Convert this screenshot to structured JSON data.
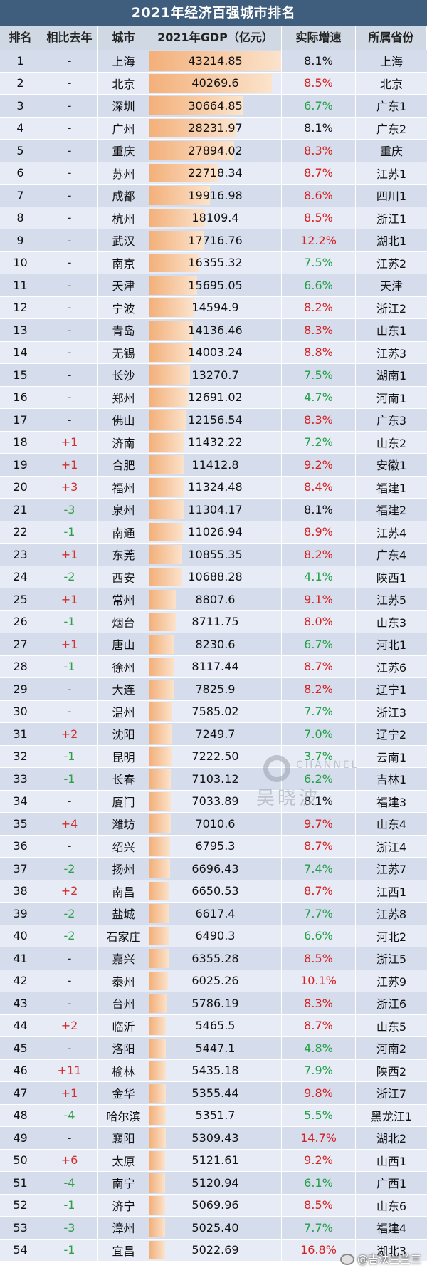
{
  "title": "2021年经济百强城市排名",
  "headers": {
    "rank": "排名",
    "change": "相比去年",
    "city": "城市",
    "gdp": "2021年GDP（亿元）",
    "growth": "实际增速",
    "province": "所属省份"
  },
  "colors": {
    "title_bg": "#3f5d7d",
    "header_bg": "#cfd8e3",
    "row_odd": "#d5dcec",
    "row_even": "#e7ebf5",
    "positive_change": "#d32f2f",
    "negative_change": "#2e9e47"
  },
  "gdp_scale_max": 43214.85,
  "rows": [
    {
      "rank": "1",
      "change": "-",
      "city": "上海",
      "gdp": "43214.85",
      "growth": "8.1%",
      "province": "上海"
    },
    {
      "rank": "2",
      "change": "-",
      "city": "北京",
      "gdp": "40269.6",
      "growth": "8.5%",
      "province": "北京"
    },
    {
      "rank": "3",
      "change": "-",
      "city": "深圳",
      "gdp": "30664.85",
      "growth": "6.7%",
      "province": "广东1"
    },
    {
      "rank": "4",
      "change": "-",
      "city": "广州",
      "gdp": "28231.97",
      "growth": "8.1%",
      "province": "广东2"
    },
    {
      "rank": "5",
      "change": "-",
      "city": "重庆",
      "gdp": "27894.02",
      "growth": "8.3%",
      "province": "重庆"
    },
    {
      "rank": "6",
      "change": "-",
      "city": "苏州",
      "gdp": "22718.34",
      "growth": "8.7%",
      "province": "江苏1"
    },
    {
      "rank": "7",
      "change": "-",
      "city": "成都",
      "gdp": "19916.98",
      "growth": "8.6%",
      "province": "四川1"
    },
    {
      "rank": "8",
      "change": "-",
      "city": "杭州",
      "gdp": "18109.4",
      "growth": "8.5%",
      "province": "浙江1"
    },
    {
      "rank": "9",
      "change": "-",
      "city": "武汉",
      "gdp": "17716.76",
      "growth": "12.2%",
      "province": "湖北1"
    },
    {
      "rank": "10",
      "change": "-",
      "city": "南京",
      "gdp": "16355.32",
      "growth": "7.5%",
      "province": "江苏2"
    },
    {
      "rank": "11",
      "change": "-",
      "city": "天津",
      "gdp": "15695.05",
      "growth": "6.6%",
      "province": "天津"
    },
    {
      "rank": "12",
      "change": "-",
      "city": "宁波",
      "gdp": "14594.9",
      "growth": "8.2%",
      "province": "浙江2"
    },
    {
      "rank": "13",
      "change": "-",
      "city": "青岛",
      "gdp": "14136.46",
      "growth": "8.3%",
      "province": "山东1"
    },
    {
      "rank": "14",
      "change": "-",
      "city": "无锡",
      "gdp": "14003.24",
      "growth": "8.8%",
      "province": "江苏3"
    },
    {
      "rank": "15",
      "change": "-",
      "city": "长沙",
      "gdp": "13270.7",
      "growth": "7.5%",
      "province": "湖南1"
    },
    {
      "rank": "16",
      "change": "-",
      "city": "郑州",
      "gdp": "12691.02",
      "growth": "4.7%",
      "province": "河南1"
    },
    {
      "rank": "17",
      "change": "-",
      "city": "佛山",
      "gdp": "12156.54",
      "growth": "8.3%",
      "province": "广东3"
    },
    {
      "rank": "18",
      "change": "+1",
      "city": "济南",
      "gdp": "11432.22",
      "growth": "7.2%",
      "province": "山东2"
    },
    {
      "rank": "19",
      "change": "+1",
      "city": "合肥",
      "gdp": "11412.8",
      "growth": "9.2%",
      "province": "安徽1"
    },
    {
      "rank": "20",
      "change": "+3",
      "city": "福州",
      "gdp": "11324.48",
      "growth": "8.4%",
      "province": "福建1"
    },
    {
      "rank": "21",
      "change": "-3",
      "city": "泉州",
      "gdp": "11304.17",
      "growth": "8.1%",
      "province": "福建2"
    },
    {
      "rank": "22",
      "change": "-1",
      "city": "南通",
      "gdp": "11026.94",
      "growth": "8.9%",
      "province": "江苏4"
    },
    {
      "rank": "23",
      "change": "+1",
      "city": "东莞",
      "gdp": "10855.35",
      "growth": "8.2%",
      "province": "广东4"
    },
    {
      "rank": "24",
      "change": "-2",
      "city": "西安",
      "gdp": "10688.28",
      "growth": "4.1%",
      "province": "陕西1"
    },
    {
      "rank": "25",
      "change": "+1",
      "city": "常州",
      "gdp": "8807.6",
      "growth": "9.1%",
      "province": "江苏5"
    },
    {
      "rank": "26",
      "change": "-1",
      "city": "烟台",
      "gdp": "8711.75",
      "growth": "8.0%",
      "province": "山东3"
    },
    {
      "rank": "27",
      "change": "+1",
      "city": "唐山",
      "gdp": "8230.6",
      "growth": "6.7%",
      "province": "河北1"
    },
    {
      "rank": "28",
      "change": "-1",
      "city": "徐州",
      "gdp": "8117.44",
      "growth": "8.7%",
      "province": "江苏6"
    },
    {
      "rank": "29",
      "change": "-",
      "city": "大连",
      "gdp": "7825.9",
      "growth": "8.2%",
      "province": "辽宁1"
    },
    {
      "rank": "30",
      "change": "-",
      "city": "温州",
      "gdp": "7585.02",
      "growth": "7.7%",
      "province": "浙江3"
    },
    {
      "rank": "31",
      "change": "+2",
      "city": "沈阳",
      "gdp": "7249.7",
      "growth": "7.0%",
      "province": "辽宁2"
    },
    {
      "rank": "32",
      "change": "-1",
      "city": "昆明",
      "gdp": "7222.50",
      "growth": "3.7%",
      "province": "云南1"
    },
    {
      "rank": "33",
      "change": "-1",
      "city": "长春",
      "gdp": "7103.12",
      "growth": "6.2%",
      "province": "吉林1"
    },
    {
      "rank": "34",
      "change": "-",
      "city": "厦门",
      "gdp": "7033.89",
      "growth": "8.1%",
      "province": "福建3"
    },
    {
      "rank": "35",
      "change": "+4",
      "city": "潍坊",
      "gdp": "7010.6",
      "growth": "9.7%",
      "province": "山东4"
    },
    {
      "rank": "36",
      "change": "-",
      "city": "绍兴",
      "gdp": "6795.3",
      "growth": "8.7%",
      "province": "浙江4"
    },
    {
      "rank": "37",
      "change": "-2",
      "city": "扬州",
      "gdp": "6696.43",
      "growth": "7.4%",
      "province": "江苏7"
    },
    {
      "rank": "38",
      "change": "+2",
      "city": "南昌",
      "gdp": "6650.53",
      "growth": "8.7%",
      "province": "江西1"
    },
    {
      "rank": "39",
      "change": "-2",
      "city": "盐城",
      "gdp": "6617.4",
      "growth": "7.7%",
      "province": "江苏8"
    },
    {
      "rank": "40",
      "change": "-2",
      "city": "石家庄",
      "gdp": "6490.3",
      "growth": "6.6%",
      "province": "河北2"
    },
    {
      "rank": "41",
      "change": "-",
      "city": "嘉兴",
      "gdp": "6355.28",
      "growth": "8.5%",
      "province": "浙江5"
    },
    {
      "rank": "42",
      "change": "-",
      "city": "泰州",
      "gdp": "6025.26",
      "growth": "10.1%",
      "province": "江苏9"
    },
    {
      "rank": "43",
      "change": "-",
      "city": "台州",
      "gdp": "5786.19",
      "growth": "8.3%",
      "province": "浙江6"
    },
    {
      "rank": "44",
      "change": "+2",
      "city": "临沂",
      "gdp": "5465.5",
      "growth": "8.7%",
      "province": "山东5"
    },
    {
      "rank": "45",
      "change": "-",
      "city": "洛阳",
      "gdp": "5447.1",
      "growth": "4.8%",
      "province": "河南2"
    },
    {
      "rank": "46",
      "change": "+11",
      "city": "榆林",
      "gdp": "5435.18",
      "growth": "7.9%",
      "province": "陕西2"
    },
    {
      "rank": "47",
      "change": "+1",
      "city": "金华",
      "gdp": "5355.44",
      "growth": "9.8%",
      "province": "浙江7"
    },
    {
      "rank": "48",
      "change": "-4",
      "city": "哈尔滨",
      "gdp": "5351.7",
      "growth": "5.5%",
      "province": "黑龙江1"
    },
    {
      "rank": "49",
      "change": "-",
      "city": "襄阳",
      "gdp": "5309.43",
      "growth": "14.7%",
      "province": "湖北2"
    },
    {
      "rank": "50",
      "change": "+6",
      "city": "太原",
      "gdp": "5121.61",
      "growth": "9.2%",
      "province": "山西1"
    },
    {
      "rank": "51",
      "change": "-4",
      "city": "南宁",
      "gdp": "5120.94",
      "growth": "6.1%",
      "province": "广西1"
    },
    {
      "rank": "52",
      "change": "-1",
      "city": "济宁",
      "gdp": "5069.96",
      "growth": "8.5%",
      "province": "山东6"
    },
    {
      "rank": "53",
      "change": "-3",
      "city": "漳州",
      "gdp": "5025.40",
      "growth": "7.7%",
      "province": "福建4"
    },
    {
      "rank": "54",
      "change": "-1",
      "city": "宜昌",
      "gdp": "5022.69",
      "growth": "16.8%",
      "province": "湖北3"
    }
  ],
  "watermark": {
    "big": "吴晓波",
    "small": "CHANNEL"
  },
  "weibo_caption": "@吉法兰兰三"
}
